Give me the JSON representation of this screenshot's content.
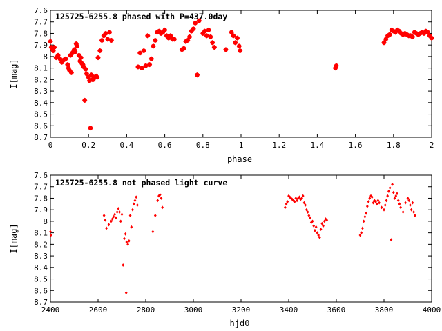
{
  "chart_data": [
    {
      "type": "scatter",
      "title": "125725-6255.8 phased with P=437.0day",
      "xlabel": "phase",
      "ylabel": "I[mag]",
      "xlim": [
        0,
        2
      ],
      "ylim": [
        8.7,
        7.6
      ],
      "y_inverted": true,
      "marker_color": "#ff0000",
      "marker": "star",
      "xticks": [
        0,
        0.2,
        0.4,
        0.6,
        0.8,
        1,
        1.2,
        1.4,
        1.6,
        1.8,
        2
      ],
      "xtick_labels": [
        "0",
        "0.2",
        "0.4",
        "0.6",
        "0.8",
        "1",
        "1.2",
        "1.4",
        "1.6",
        "1.8",
        "2"
      ],
      "yticks": [
        7.6,
        7.7,
        7.8,
        7.9,
        8.0,
        8.1,
        8.2,
        8.3,
        8.4,
        8.5,
        8.6,
        8.7
      ],
      "ytick_labels": [
        "7.6",
        "7.7",
        "7.8",
        "7.9",
        "8",
        "8.1",
        "8.2",
        "8.3",
        "8.4",
        "8.5",
        "8.6",
        "8.7"
      ],
      "series": [
        {
          "x": [
            0.0,
            0.005,
            0.01,
            0.015,
            0.02,
            0.03,
            0.04,
            0.05,
            0.06,
            0.07,
            0.08,
            0.09,
            0.095,
            0.1,
            0.105,
            0.11,
            0.115,
            0.12,
            0.125,
            0.13,
            0.135,
            0.14,
            0.15,
            0.155,
            0.16,
            0.165,
            0.17,
            0.175,
            0.18,
            0.185,
            0.19,
            0.2,
            0.205,
            0.21,
            0.215,
            0.22,
            0.225,
            0.23,
            0.24,
            0.245,
            0.25,
            0.26,
            0.27,
            0.28,
            0.29,
            0.3,
            0.31,
            0.32,
            0.46,
            0.47,
            0.48,
            0.49,
            0.5,
            0.51,
            0.52,
            0.53,
            0.54,
            0.55,
            0.56,
            0.57,
            0.58,
            0.59,
            0.6,
            0.61,
            0.62,
            0.63,
            0.64,
            0.65,
            0.69,
            0.7,
            0.71,
            0.72,
            0.73,
            0.74,
            0.75,
            0.76,
            0.77,
            0.78,
            0.8,
            0.81,
            0.82,
            0.83,
            0.84,
            0.85,
            0.86,
            0.92,
            0.95,
            0.96,
            0.97,
            0.98,
            0.99,
            0.995,
            1.495,
            1.5,
            1.75,
            1.76,
            1.77,
            1.78,
            1.79,
            1.8,
            1.81,
            1.82,
            1.83,
            1.84,
            1.85,
            1.86,
            1.87,
            1.88,
            1.89,
            1.9,
            1.91,
            1.92,
            1.93,
            1.94,
            1.95,
            1.96,
            1.97,
            1.98,
            1.99,
            2.0
          ],
          "y": [
            7.87,
            7.92,
            7.93,
            7.95,
            7.92,
            8.01,
            7.99,
            8.02,
            8.05,
            8.03,
            8.02,
            8.07,
            8.1,
            8.12,
            7.99,
            8.14,
            7.97,
            7.96,
            7.94,
            7.96,
            7.89,
            7.91,
            7.99,
            8.04,
            8.01,
            8.06,
            8.07,
            8.09,
            8.38,
            8.11,
            8.15,
            8.18,
            8.21,
            8.62,
            8.16,
            8.2,
            8.2,
            8.18,
            8.17,
            8.18,
            8.01,
            7.95,
            7.86,
            7.82,
            7.8,
            7.85,
            7.79,
            7.86,
            8.09,
            7.97,
            8.1,
            7.95,
            8.08,
            7.82,
            8.07,
            8.02,
            7.91,
            7.86,
            7.79,
            7.78,
            7.8,
            7.79,
            7.77,
            7.82,
            7.84,
            7.82,
            7.85,
            7.85,
            7.94,
            7.93,
            7.87,
            7.86,
            7.83,
            7.78,
            7.76,
            7.71,
            8.16,
            7.69,
            7.8,
            7.78,
            7.82,
            7.77,
            7.83,
            7.88,
            7.92,
            7.94,
            7.79,
            7.82,
            7.88,
            7.84,
            7.91,
            7.95,
            8.1,
            8.08,
            7.88,
            7.85,
            7.82,
            7.81,
            7.77,
            7.78,
            7.79,
            7.77,
            7.78,
            7.8,
            7.81,
            7.8,
            7.81,
            7.82,
            7.82,
            7.83,
            7.79,
            7.8,
            7.81,
            7.8,
            7.79,
            7.8,
            7.78,
            7.79,
            7.82,
            7.84
          ]
        }
      ]
    },
    {
      "type": "scatter",
      "title": "125725-6255.8 not phased light curve",
      "xlabel": "hjd0",
      "ylabel": "I[mag]",
      "xlim": [
        2400,
        4000
      ],
      "ylim": [
        8.7,
        7.6
      ],
      "y_inverted": true,
      "marker_color": "#ff0000",
      "marker": "diamond",
      "xticks": [
        2400,
        2600,
        2800,
        3000,
        3200,
        3400,
        3600,
        3800,
        4000
      ],
      "xtick_labels": [
        "2400",
        "2600",
        "2800",
        "3000",
        "3200",
        "3400",
        "3600",
        "3800",
        "4000"
      ],
      "yticks": [
        7.6,
        7.7,
        7.8,
        7.9,
        8.0,
        8.1,
        8.2,
        8.3,
        8.4,
        8.5,
        8.6,
        8.7
      ],
      "ytick_labels": [
        "7.6",
        "7.7",
        "7.8",
        "7.9",
        "8",
        "8.1",
        "8.2",
        "8.3",
        "8.4",
        "8.5",
        "8.6",
        "8.7"
      ],
      "series": [
        {
          "x": [
            2400,
            2402,
            2625,
            2630,
            2635,
            2645,
            2655,
            2660,
            2665,
            2670,
            2675,
            2680,
            2685,
            2690,
            2695,
            2700,
            2705,
            2710,
            2715,
            2718,
            2720,
            2725,
            2730,
            2735,
            2740,
            2745,
            2750,
            2755,
            2760,
            2765,
            2830,
            2840,
            2850,
            2855,
            2860,
            2865,
            2870,
            3385,
            3390,
            3395,
            3400,
            3405,
            3410,
            3415,
            3420,
            3425,
            3430,
            3435,
            3440,
            3445,
            3450,
            3455,
            3460,
            3465,
            3470,
            3475,
            3480,
            3485,
            3490,
            3495,
            3500,
            3505,
            3510,
            3515,
            3520,
            3525,
            3530,
            3535,
            3540,
            3545,
            3550,
            3555,
            3560,
            3700,
            3705,
            3710,
            3715,
            3720,
            3725,
            3730,
            3735,
            3740,
            3745,
            3750,
            3755,
            3760,
            3765,
            3770,
            3775,
            3780,
            3790,
            3800,
            3805,
            3810,
            3815,
            3820,
            3825,
            3830,
            3835,
            3840,
            3845,
            3850,
            3855,
            3860,
            3865,
            3870,
            3880,
            3890,
            3900,
            3905,
            3910,
            3915,
            3920,
            3925,
            3930
          ],
          "y": [
            8.09,
            8.12,
            7.95,
            7.99,
            8.06,
            8.03,
            8.0,
            7.98,
            7.96,
            7.94,
            7.97,
            7.92,
            7.89,
            7.92,
            8.0,
            7.94,
            8.38,
            8.15,
            8.11,
            8.62,
            8.18,
            8.2,
            8.17,
            7.95,
            8.05,
            7.9,
            7.85,
            7.82,
            7.79,
            7.86,
            8.09,
            7.95,
            7.82,
            7.78,
            7.77,
            7.8,
            7.88,
            7.88,
            7.85,
            7.83,
            7.78,
            7.79,
            7.8,
            7.81,
            7.82,
            7.83,
            7.8,
            7.82,
            7.8,
            7.79,
            7.81,
            7.8,
            7.78,
            7.84,
            7.86,
            7.9,
            7.92,
            7.95,
            7.97,
            8.01,
            8.0,
            8.04,
            8.08,
            8.05,
            8.1,
            8.12,
            8.14,
            8.07,
            8.02,
            8.04,
            8.0,
            7.98,
            7.99,
            8.12,
            8.1,
            8.06,
            8.0,
            7.96,
            7.93,
            7.87,
            7.83,
            7.8,
            7.78,
            7.79,
            7.84,
            7.82,
            7.83,
            7.85,
            7.82,
            7.84,
            7.88,
            7.9,
            7.86,
            7.82,
            7.78,
            7.74,
            7.71,
            8.16,
            7.68,
            7.75,
            7.8,
            7.78,
            7.76,
            7.82,
            7.85,
            7.88,
            7.92,
            7.84,
            7.8,
            7.82,
            7.86,
            7.9,
            7.84,
            7.92,
            7.95
          ]
        }
      ]
    }
  ]
}
